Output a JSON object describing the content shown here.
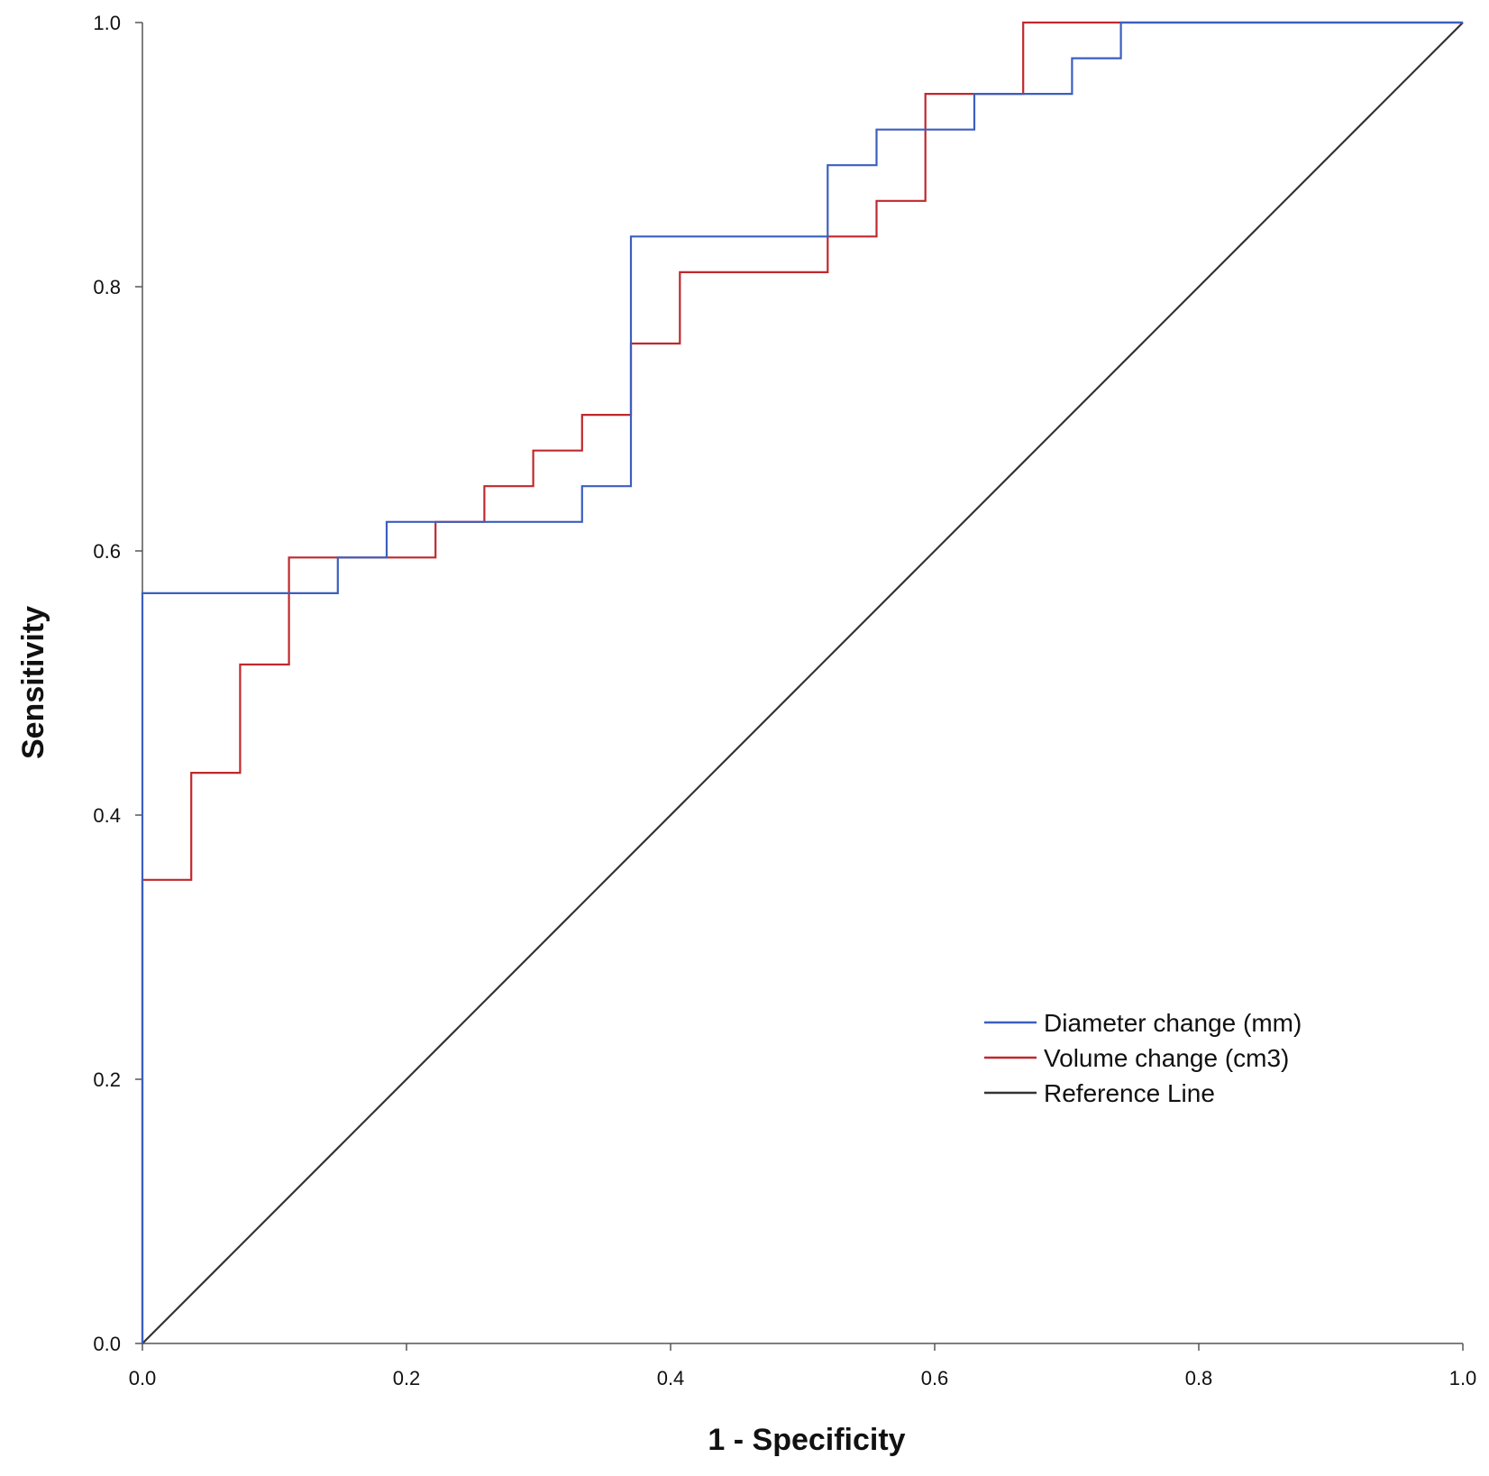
{
  "chart_data": {
    "type": "line",
    "title": "",
    "xlabel": "1 - Specificity",
    "ylabel": "Sensitivity",
    "xlim": [
      0,
      1
    ],
    "ylim": [
      0,
      1
    ],
    "xticks": [
      "0.0",
      "0.2",
      "0.4",
      "0.6",
      "0.8",
      "1.0"
    ],
    "yticks": [
      "0.0",
      "0.2",
      "0.4",
      "0.6",
      "0.8",
      "1.0"
    ],
    "grid": false,
    "legend_position": "bottom-right",
    "series": [
      {
        "name": "Diameter change (mm)",
        "color": "#3b5fc0",
        "x": [
          0,
          0,
          0.148,
          0.148,
          0.185,
          0.185,
          0.333,
          0.333,
          0.37,
          0.37,
          0.37,
          0.519,
          0.519,
          0.556,
          0.556,
          0.63,
          0.63,
          0.704,
          0.704,
          0.741,
          0.741,
          1.0
        ],
        "y": [
          0,
          0.568,
          0.568,
          0.595,
          0.595,
          0.622,
          0.622,
          0.649,
          0.649,
          0.838,
          0.838,
          0.838,
          0.892,
          0.892,
          0.919,
          0.919,
          0.946,
          0.946,
          0.973,
          0.973,
          1.0,
          1.0
        ]
      },
      {
        "name": "Volume change (cm3)",
        "color": "#c0282d",
        "x": [
          0,
          0,
          0.037,
          0.037,
          0.074,
          0.074,
          0.111,
          0.111,
          0.222,
          0.222,
          0.259,
          0.259,
          0.296,
          0.296,
          0.333,
          0.333,
          0.37,
          0.37,
          0.407,
          0.407,
          0.519,
          0.519,
          0.556,
          0.556,
          0.593,
          0.593,
          0.667,
          0.667,
          1.0
        ],
        "y": [
          0,
          0.351,
          0.351,
          0.432,
          0.432,
          0.514,
          0.514,
          0.595,
          0.595,
          0.622,
          0.622,
          0.649,
          0.649,
          0.676,
          0.676,
          0.703,
          0.703,
          0.757,
          0.757,
          0.811,
          0.811,
          0.838,
          0.838,
          0.865,
          0.865,
          0.946,
          0.946,
          1.0,
          1.0
        ]
      },
      {
        "name": "Reference Line",
        "color": "#333333",
        "x": [
          0,
          1
        ],
        "y": [
          0,
          1
        ]
      }
    ]
  }
}
